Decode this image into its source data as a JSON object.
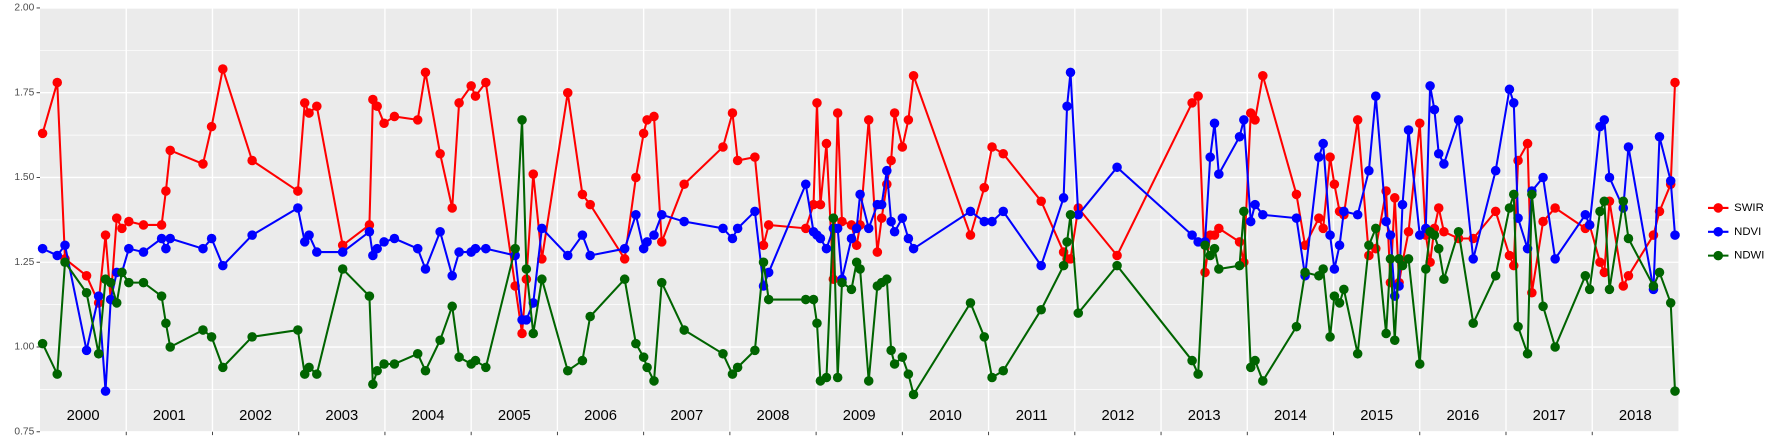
{
  "chart_data": {
    "type": "line",
    "x": [
      2000.03,
      2000.2,
      2000.29,
      2000.54,
      2000.68,
      2000.76,
      2000.82,
      2000.89,
      2000.95,
      2001.03,
      2001.2,
      2001.41,
      2001.46,
      2001.51,
      2001.89,
      2001.99,
      2002.12,
      2002.46,
      2002.99,
      2003.07,
      2003.12,
      2003.21,
      2003.51,
      2003.82,
      2003.86,
      2003.91,
      2003.99,
      2004.11,
      2004.38,
      2004.47,
      2004.64,
      2004.78,
      2004.86,
      2005.0,
      2005.05,
      2005.17,
      2005.51,
      2005.59,
      2005.64,
      2005.72,
      2005.82,
      2006.12,
      2006.29,
      2006.38,
      2006.78,
      2006.91,
      2007.0,
      2007.04,
      2007.12,
      2007.21,
      2007.47,
      2007.92,
      2008.03,
      2008.09,
      2008.29,
      2008.39,
      2008.45,
      2008.88,
      2008.97,
      2009.01,
      2009.05,
      2009.12,
      2009.2,
      2009.25,
      2009.3,
      2009.41,
      2009.47,
      2009.51,
      2009.61,
      2009.71,
      2009.76,
      2009.82,
      2009.87,
      2009.91,
      2010.0,
      2010.07,
      2010.13,
      2010.79,
      2010.95,
      2011.04,
      2011.17,
      2011.61,
      2011.87,
      2011.91,
      2011.95,
      2012.04,
      2012.49,
      2013.36,
      2013.43,
      2013.51,
      2013.57,
      2013.62,
      2013.67,
      2013.91,
      2013.96,
      2014.04,
      2014.09,
      2014.18,
      2014.57,
      2014.67,
      2014.83,
      2014.88,
      2014.96,
      2015.01,
      2015.07,
      2015.12,
      2015.28,
      2015.41,
      2015.49,
      2015.61,
      2015.66,
      2015.71,
      2015.76,
      2015.8,
      2015.87,
      2016.0,
      2016.07,
      2016.12,
      2016.17,
      2016.22,
      2016.28,
      2016.45,
      2016.62,
      2016.88,
      2017.04,
      2017.09,
      2017.14,
      2017.25,
      2017.3,
      2017.43,
      2017.57,
      2017.92,
      2017.97,
      2018.09,
      2018.14,
      2018.2,
      2018.36,
      2018.42,
      2018.71,
      2018.78,
      2018.91,
      2018.96
    ],
    "series": [
      {
        "name": "SWIR",
        "color": "#ff0000",
        "values": [
          1.63,
          1.78,
          1.26,
          1.21,
          1.13,
          1.33,
          1.14,
          1.38,
          1.35,
          1.37,
          1.36,
          1.36,
          1.46,
          1.58,
          1.54,
          1.65,
          1.82,
          1.55,
          1.46,
          1.72,
          1.69,
          1.71,
          1.3,
          1.36,
          1.73,
          1.71,
          1.66,
          1.68,
          1.67,
          1.81,
          1.57,
          1.41,
          1.72,
          1.77,
          1.74,
          1.78,
          1.18,
          1.04,
          1.2,
          1.51,
          1.26,
          1.75,
          1.45,
          1.42,
          1.26,
          1.5,
          1.63,
          1.67,
          1.68,
          1.31,
          1.48,
          1.59,
          1.69,
          1.55,
          1.56,
          1.3,
          1.36,
          1.35,
          1.42,
          1.72,
          1.42,
          1.6,
          1.2,
          1.69,
          1.37,
          1.36,
          1.3,
          1.36,
          1.67,
          1.28,
          1.38,
          1.48,
          1.55,
          1.69,
          1.59,
          1.67,
          1.8,
          1.33,
          1.47,
          1.59,
          1.57,
          1.43,
          1.28,
          1.26,
          1.26,
          1.41,
          1.27,
          1.72,
          1.74,
          1.22,
          1.33,
          1.33,
          1.35,
          1.31,
          1.25,
          1.69,
          1.67,
          1.8,
          1.45,
          1.3,
          1.38,
          1.35,
          1.56,
          1.48,
          1.4,
          1.39,
          1.67,
          1.27,
          1.29,
          1.46,
          1.19,
          1.44,
          1.19,
          1.25,
          1.34,
          1.66,
          1.33,
          1.25,
          1.35,
          1.41,
          1.34,
          1.32,
          1.32,
          1.4,
          1.27,
          1.24,
          1.55,
          1.6,
          1.16,
          1.37,
          1.41,
          1.35,
          1.36,
          1.25,
          1.22,
          1.43,
          1.18,
          1.21,
          1.33,
          1.4,
          1.48,
          1.78
        ]
      },
      {
        "name": "NDVI",
        "color": "#0000ff",
        "values": [
          1.29,
          1.27,
          1.3,
          0.99,
          1.15,
          0.87,
          1.14,
          1.22,
          1.22,
          1.29,
          1.28,
          1.32,
          1.29,
          1.32,
          1.29,
          1.32,
          1.24,
          1.33,
          1.41,
          1.31,
          1.33,
          1.28,
          1.28,
          1.34,
          1.27,
          1.29,
          1.31,
          1.32,
          1.29,
          1.23,
          1.34,
          1.21,
          1.28,
          1.28,
          1.29,
          1.29,
          1.27,
          1.08,
          1.08,
          1.13,
          1.35,
          1.27,
          1.33,
          1.27,
          1.29,
          1.39,
          1.29,
          1.31,
          1.33,
          1.39,
          1.37,
          1.35,
          1.32,
          1.35,
          1.4,
          1.18,
          1.22,
          1.48,
          1.34,
          1.33,
          1.32,
          1.29,
          1.35,
          1.35,
          1.2,
          1.32,
          1.35,
          1.45,
          1.35,
          1.42,
          1.42,
          1.52,
          1.37,
          1.34,
          1.38,
          1.32,
          1.29,
          1.4,
          1.37,
          1.37,
          1.4,
          1.24,
          1.44,
          1.71,
          1.81,
          1.39,
          1.53,
          1.33,
          1.31,
          1.31,
          1.56,
          1.66,
          1.51,
          1.62,
          1.67,
          1.37,
          1.42,
          1.39,
          1.38,
          1.21,
          1.56,
          1.6,
          1.33,
          1.23,
          1.3,
          1.4,
          1.39,
          1.52,
          1.74,
          1.37,
          1.33,
          1.15,
          1.18,
          1.42,
          1.64,
          1.33,
          1.35,
          1.77,
          1.7,
          1.57,
          1.54,
          1.67,
          1.26,
          1.52,
          1.76,
          1.72,
          1.38,
          1.29,
          1.46,
          1.5,
          1.26,
          1.39,
          1.36,
          1.65,
          1.67,
          1.5,
          1.41,
          1.59,
          1.17,
          1.62,
          1.49,
          1.33
        ]
      },
      {
        "name": "NDWI",
        "color": "#006400",
        "values": [
          1.01,
          0.92,
          1.25,
          1.16,
          0.98,
          1.2,
          1.19,
          1.13,
          1.22,
          1.19,
          1.19,
          1.15,
          1.07,
          1.0,
          1.05,
          1.03,
          0.94,
          1.03,
          1.05,
          0.92,
          0.94,
          0.92,
          1.23,
          1.15,
          0.89,
          0.93,
          0.95,
          0.95,
          0.98,
          0.93,
          1.02,
          1.12,
          0.97,
          0.95,
          0.96,
          0.94,
          1.29,
          1.67,
          1.23,
          1.04,
          1.2,
          0.93,
          0.96,
          1.09,
          1.2,
          1.01,
          0.97,
          0.94,
          0.9,
          1.19,
          1.05,
          0.98,
          0.92,
          0.94,
          0.99,
          1.25,
          1.14,
          1.14,
          1.14,
          1.07,
          0.9,
          0.91,
          1.38,
          0.91,
          1.19,
          1.17,
          1.25,
          1.23,
          0.9,
          1.18,
          1.19,
          1.2,
          0.99,
          0.95,
          0.97,
          0.92,
          0.86,
          1.13,
          1.03,
          0.91,
          0.93,
          1.11,
          1.24,
          1.31,
          1.39,
          1.1,
          1.24,
          0.96,
          0.92,
          1.3,
          1.27,
          1.29,
          1.23,
          1.24,
          1.4,
          0.94,
          0.96,
          0.9,
          1.06,
          1.22,
          1.21,
          1.23,
          1.03,
          1.15,
          1.13,
          1.17,
          0.98,
          1.3,
          1.35,
          1.04,
          1.26,
          1.02,
          1.26,
          1.24,
          1.26,
          0.95,
          1.23,
          1.34,
          1.33,
          1.29,
          1.2,
          1.34,
          1.07,
          1.21,
          1.41,
          1.45,
          1.06,
          0.98,
          1.45,
          1.12,
          1.0,
          1.21,
          1.17,
          1.4,
          1.43,
          1.17,
          1.43,
          1.32,
          1.18,
          1.22,
          1.13,
          0.87
        ]
      }
    ],
    "year_labels": [
      "2000",
      "2001",
      "2002",
      "2003",
      "2004",
      "2005",
      "2006",
      "2007",
      "2008",
      "2009",
      "2010",
      "2011",
      "2012",
      "2013",
      "2014",
      "2015",
      "2016",
      "2017",
      "2018"
    ],
    "xlim": [
      2000,
      2019
    ],
    "xticks": [
      2001,
      2002,
      2003,
      2004,
      2005,
      2006,
      2007,
      2008,
      2009,
      2010,
      2011,
      2012,
      2013,
      2014,
      2015,
      2016,
      2017,
      2018
    ],
    "ylim": [
      0.75,
      2.0
    ],
    "yticks": [
      {
        "value": 0.75,
        "label": "0.75"
      },
      {
        "value": 1.0,
        "label": "1.00"
      },
      {
        "value": 1.25,
        "label": "1.25"
      },
      {
        "value": 1.5,
        "label": "1.50"
      },
      {
        "value": 1.75,
        "label": "1.75"
      },
      {
        "value": 2.0,
        "label": "2.00"
      }
    ],
    "grid": true
  }
}
